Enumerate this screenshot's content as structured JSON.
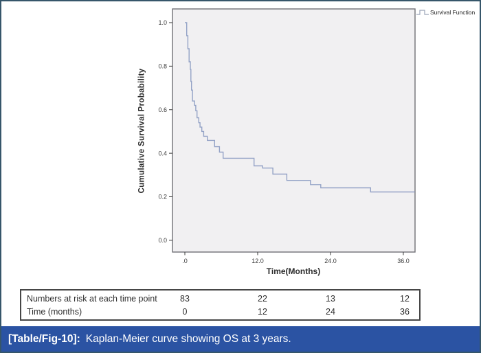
{
  "figure": {
    "caption_label": "[Table/Fig-10]:",
    "caption_text": "Kaplan-Meier curve showing OS at 3 years.",
    "caption_bg": "#2b53a3",
    "border_color": "#36566a"
  },
  "chart_data": {
    "type": "line",
    "subtype": "kaplan-meier-step",
    "title": "",
    "ylabel": "Cumulative Survival Probability",
    "xlabel": "Time(Months)",
    "legend_position": "top-right-outside",
    "legend": [
      {
        "label": "Survival Function",
        "color": "#93a2c6"
      }
    ],
    "plot_bg": "#f1f0f2",
    "frame_color": "#6f6f75",
    "tick_color": "#3a3a3a",
    "grid": false,
    "xlim": [
      -2.04,
      37.93
    ],
    "ylim": [
      -0.054,
      1.063
    ],
    "x_ticks": [
      {
        "value": 0,
        "label": ".0"
      },
      {
        "value": 12,
        "label": "12.0"
      },
      {
        "value": 24,
        "label": "24.0"
      },
      {
        "value": 36,
        "label": "36.0"
      }
    ],
    "y_ticks": [
      {
        "value": 1.0,
        "label": "1.0"
      },
      {
        "value": 0.8,
        "label": "0.8"
      },
      {
        "value": 0.6,
        "label": "0.6"
      },
      {
        "value": 0.4,
        "label": "0.4"
      },
      {
        "value": 0.2,
        "label": "0.2"
      },
      {
        "value": 0.0,
        "label": "0.0"
      }
    ],
    "series": [
      {
        "name": "Survival Function",
        "color": "#93a2c6",
        "steps": [
          [
            0,
            1.0
          ],
          [
            0.3,
            0.94
          ],
          [
            0.5,
            0.88
          ],
          [
            0.7,
            0.82
          ],
          [
            0.9,
            0.785
          ],
          [
            1.0,
            0.73
          ],
          [
            1.1,
            0.69
          ],
          [
            1.25,
            0.64
          ],
          [
            1.6,
            0.62
          ],
          [
            1.8,
            0.595
          ],
          [
            2.0,
            0.563
          ],
          [
            2.3,
            0.54
          ],
          [
            2.5,
            0.52
          ],
          [
            2.8,
            0.5
          ],
          [
            3.1,
            0.478
          ],
          [
            3.7,
            0.459
          ],
          [
            4.9,
            0.43
          ],
          [
            5.7,
            0.405
          ],
          [
            6.3,
            0.377
          ],
          [
            11.4,
            0.342
          ],
          [
            12.8,
            0.332
          ],
          [
            14.5,
            0.304
          ],
          [
            16.8,
            0.275
          ],
          [
            20.7,
            0.256
          ],
          [
            22.4,
            0.241
          ],
          [
            30.6,
            0.222
          ],
          [
            37.9,
            0.222
          ]
        ]
      }
    ]
  },
  "risk_table": {
    "rows": [
      {
        "label": "Numbers at risk at each time point",
        "values": [
          "83",
          "22",
          "13",
          "12"
        ]
      },
      {
        "label": "Time (months)",
        "values": [
          "0",
          "12",
          "24",
          "36"
        ]
      }
    ]
  }
}
